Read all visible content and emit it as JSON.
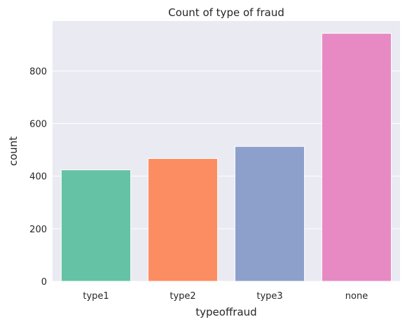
{
  "chart_data": {
    "type": "bar",
    "title": "Count of type of fraud",
    "xlabel": "typeoffraud",
    "ylabel": "count",
    "categories": [
      "type1",
      "type2",
      "type3",
      "none"
    ],
    "values": [
      424,
      467,
      513,
      943
    ],
    "colors": [
      "#66c2a5",
      "#fc8d62",
      "#8da0cb",
      "#e78ac3"
    ],
    "ylim": [
      0,
      990
    ],
    "yticks": [
      0,
      200,
      400,
      600,
      800
    ],
    "grid": true,
    "background": "#eaeaf2"
  }
}
